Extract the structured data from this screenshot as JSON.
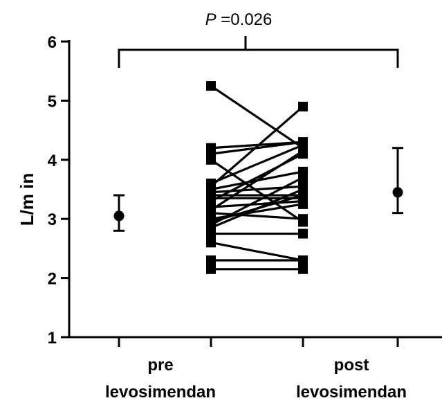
{
  "chart_data": {
    "type": "scatter",
    "ylabel": "L/m in",
    "ylim": [
      1,
      6
    ],
    "yticks": [
      "1",
      "2",
      "3",
      "4",
      "5",
      "6"
    ],
    "categories": [
      {
        "line1": "pre",
        "line2": "levosimendan"
      },
      {
        "line1": "post",
        "line2": "levosimendan"
      }
    ],
    "annotation": {
      "p_symbol": "P",
      "p_value": " =0.026"
    },
    "summary": [
      {
        "category": "pre levosimendan",
        "median": 3.05,
        "low": 2.8,
        "high": 3.4
      },
      {
        "category": "post levosimendan",
        "median": 3.45,
        "low": 3.1,
        "high": 4.2
      }
    ],
    "paired": {
      "pre": [
        5.25,
        4.2,
        4.1,
        4.0,
        3.6,
        3.5,
        3.45,
        3.4,
        3.35,
        3.3,
        3.2,
        3.15,
        3.1,
        3.0,
        2.95,
        2.9,
        2.85,
        2.75,
        2.6,
        2.3,
        2.15
      ],
      "post": [
        4.2,
        4.3,
        4.3,
        2.95,
        4.25,
        3.8,
        3.55,
        3.4,
        3.35,
        4.1,
        3.3,
        4.15,
        3.0,
        3.25,
        3.4,
        3.7,
        3.5,
        2.75,
        2.3,
        2.3,
        2.15
      ]
    },
    "paired_extra": {
      "pre": 3.55,
      "post": 4.9
    }
  }
}
